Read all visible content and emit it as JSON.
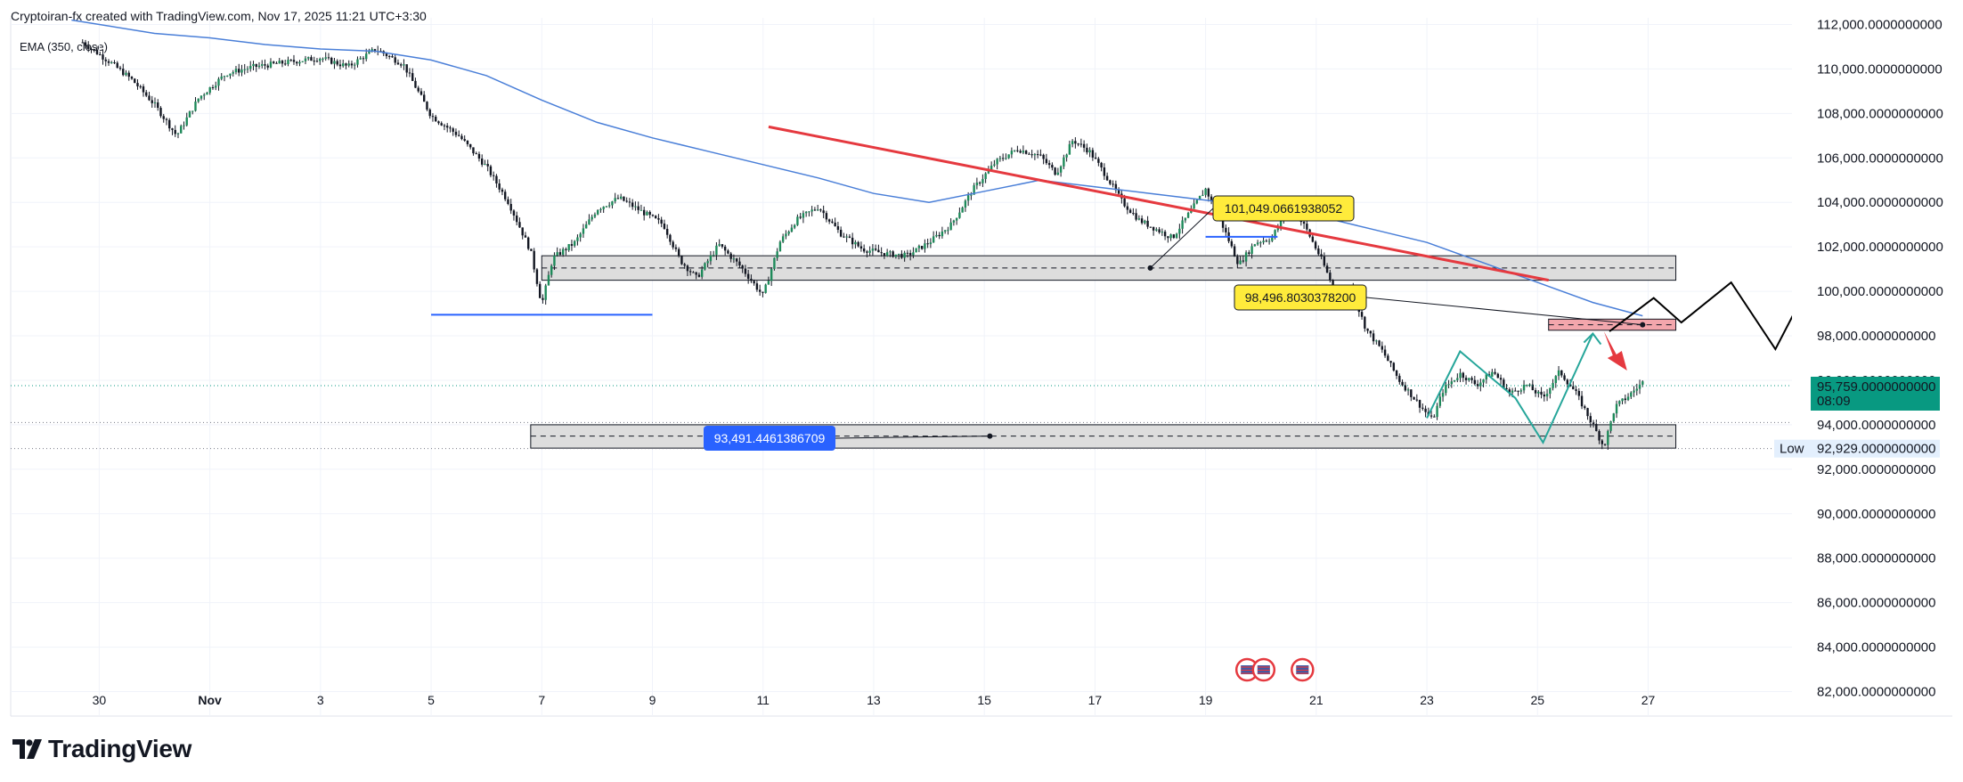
{
  "header": {
    "attribution": "Cryptoiran-fx created with TradingView.com, Nov 17, 2025 11:21 UTC+3:30"
  },
  "indicator": {
    "label": "EMA (350, close)"
  },
  "brand": {
    "name": "TradingView"
  },
  "colors": {
    "background": "#ffffff",
    "grid": "#f0f3fa",
    "candle": "#1e8a5a",
    "ema": "#4a7fd8",
    "red_trend": "#e5393f",
    "support_line": "#2962ff",
    "price_badge": "#089981",
    "zone_fill": "#d9d9d9",
    "red_zone_fill": "#f29ca3",
    "callout_yellow": "#ffeb3b",
    "callout_blue": "#2962ff",
    "green_path": "#26a69a",
    "black_path": "#000000"
  },
  "price_badge": {
    "value": "95,759.0000000000",
    "countdown": "08:09"
  },
  "low_badge": {
    "label": "Low",
    "value": "92,929.0000000000"
  },
  "callouts": {
    "upper_zone": "101,049.0661938052",
    "red_zone": "98,496.8030378200",
    "lower_zone": "93,491.4461386709"
  },
  "chart_data": {
    "type": "candlestick",
    "symbol_timeframe": "intraday",
    "y_axis": {
      "ticks": [
        "82,000.0000000000",
        "84,000.0000000000",
        "86,000.0000000000",
        "88,000.0000000000",
        "90,000.0000000000",
        "92,000.0000000000",
        "94,000.0000000000",
        "96,000.0000000000",
        "98,000.0000000000",
        "100,000.0000000000",
        "102,000.0000000000",
        "104,000.0000000000",
        "106,000.0000000000",
        "108,000.0000000000",
        "110,000.0000000000",
        "112,000.0000000000"
      ],
      "tick_values": [
        82000,
        84000,
        86000,
        88000,
        90000,
        92000,
        94000,
        96000,
        98000,
        100000,
        102000,
        104000,
        106000,
        108000,
        110000,
        112000
      ],
      "range": [
        80900,
        112300
      ]
    },
    "x_axis": {
      "labels": [
        "30",
        "Nov",
        "3",
        "5",
        "7",
        "9",
        "11",
        "13",
        "15",
        "17",
        "19",
        "21",
        "23",
        "25",
        "27"
      ],
      "day_index": [
        0,
        2,
        4,
        6,
        8,
        10,
        12,
        14,
        16,
        18,
        20,
        22,
        24,
        26,
        28
      ],
      "range_days": [
        -1.6,
        30.6
      ]
    },
    "price_path": [
      [
        -0.3,
        111200
      ],
      [
        0.2,
        110300
      ],
      [
        0.6,
        109500
      ],
      [
        1.0,
        108400
      ],
      [
        1.4,
        107000
      ],
      [
        1.8,
        108700
      ],
      [
        2.3,
        109800
      ],
      [
        2.8,
        110100
      ],
      [
        3.4,
        110300
      ],
      [
        4.0,
        110500
      ],
      [
        4.5,
        110100
      ],
      [
        5.0,
        110900
      ],
      [
        5.5,
        110200
      ],
      [
        6.0,
        107900
      ],
      [
        6.5,
        107000
      ],
      [
        7.0,
        105600
      ],
      [
        7.4,
        104000
      ],
      [
        7.8,
        101800
      ],
      [
        8.0,
        99400
      ],
      [
        8.2,
        101500
      ],
      [
        8.6,
        102200
      ],
      [
        9.0,
        103700
      ],
      [
        9.4,
        104200
      ],
      [
        9.8,
        103600
      ],
      [
        10.2,
        103000
      ],
      [
        10.5,
        101400
      ],
      [
        10.8,
        100600
      ],
      [
        11.2,
        102100
      ],
      [
        11.6,
        101100
      ],
      [
        12.0,
        99800
      ],
      [
        12.3,
        102200
      ],
      [
        12.6,
        103200
      ],
      [
        13.0,
        103800
      ],
      [
        13.4,
        102600
      ],
      [
        13.8,
        101900
      ],
      [
        14.2,
        101700
      ],
      [
        14.6,
        101600
      ],
      [
        15.0,
        102200
      ],
      [
        15.4,
        103000
      ],
      [
        15.8,
        104600
      ],
      [
        16.2,
        105800
      ],
      [
        16.6,
        106400
      ],
      [
        17.0,
        106100
      ],
      [
        17.3,
        105300
      ],
      [
        17.6,
        106800
      ],
      [
        17.9,
        106300
      ],
      [
        18.2,
        105200
      ],
      [
        18.5,
        104000
      ],
      [
        18.8,
        103200
      ],
      [
        19.1,
        102800
      ],
      [
        19.4,
        102400
      ],
      [
        19.7,
        103500
      ],
      [
        20.0,
        104600
      ],
      [
        20.3,
        103000
      ],
      [
        20.6,
        101200
      ],
      [
        20.9,
        102200
      ],
      [
        21.2,
        102400
      ],
      [
        21.5,
        103900
      ],
      [
        21.8,
        102900
      ],
      [
        22.1,
        101400
      ],
      [
        22.4,
        99600
      ],
      [
        22.6,
        100300
      ],
      [
        22.9,
        98300
      ],
      [
        23.2,
        97300
      ],
      [
        23.5,
        96000
      ],
      [
        23.8,
        95100
      ],
      [
        24.1,
        94200
      ],
      [
        24.3,
        95600
      ],
      [
        24.6,
        96300
      ],
      [
        24.9,
        95800
      ],
      [
        25.2,
        96400
      ],
      [
        25.5,
        95400
      ],
      [
        25.8,
        95800
      ],
      [
        26.1,
        95200
      ],
      [
        26.4,
        96400
      ],
      [
        26.7,
        95400
      ],
      [
        27.0,
        94000
      ],
      [
        27.2,
        93000
      ],
      [
        27.4,
        94800
      ],
      [
        27.6,
        95200
      ],
      [
        27.9,
        95900
      ]
    ],
    "ema_350": [
      [
        -0.5,
        112200
      ],
      [
        1.0,
        111600
      ],
      [
        2.0,
        111400
      ],
      [
        3.0,
        111100
      ],
      [
        4.0,
        110900
      ],
      [
        5.0,
        110800
      ],
      [
        6.0,
        110400
      ],
      [
        7.0,
        109700
      ],
      [
        8.0,
        108600
      ],
      [
        9.0,
        107600
      ],
      [
        10.0,
        106900
      ],
      [
        11.0,
        106300
      ],
      [
        12.0,
        105700
      ],
      [
        13.0,
        105100
      ],
      [
        14.0,
        104400
      ],
      [
        15.0,
        104000
      ],
      [
        16.0,
        104500
      ],
      [
        17.0,
        105000
      ],
      [
        18.0,
        104700
      ],
      [
        19.0,
        104400
      ],
      [
        20.0,
        104100
      ],
      [
        21.0,
        103800
      ],
      [
        22.0,
        103400
      ],
      [
        23.0,
        102800
      ],
      [
        24.0,
        102200
      ],
      [
        25.0,
        101300
      ],
      [
        26.0,
        100400
      ],
      [
        27.0,
        99500
      ],
      [
        27.9,
        98900
      ]
    ],
    "drawings": {
      "upper_zone": {
        "y_range": [
          100500,
          101600
        ],
        "x_range": [
          8.0,
          28.5
        ],
        "mid": 101049.0661938052
      },
      "red_zone": {
        "y_range": [
          98250,
          98750
        ],
        "x_range": [
          26.2,
          28.5
        ],
        "mid": 98496.80303782
      },
      "lower_zone": {
        "y_range": [
          92950,
          94000
        ],
        "x_range": [
          7.8,
          28.5
        ],
        "mid": 93491.4461386709
      },
      "red_trendline": [
        [
          12.1,
          107400
        ],
        [
          26.2,
          100500
        ]
      ],
      "blue_support": [
        [
          6.0,
          98950
        ],
        [
          10.0,
          98950
        ]
      ],
      "blue_small": [
        [
          20.0,
          102450
        ],
        [
          21.3,
          102450
        ]
      ]
    }
  }
}
